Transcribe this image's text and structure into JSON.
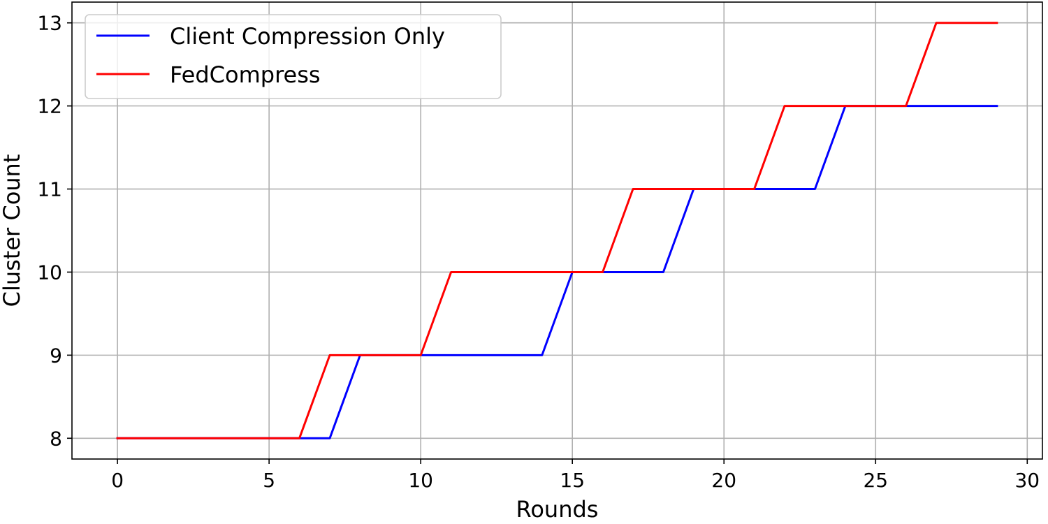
{
  "chart_data": {
    "type": "line",
    "title": "",
    "xlabel": "Rounds",
    "ylabel": "Cluster Count",
    "xlim": [
      -1.5,
      30.5
    ],
    "ylim": [
      7.75,
      13.25
    ],
    "xticks": [
      0,
      5,
      10,
      15,
      20,
      25,
      30
    ],
    "yticks": [
      8,
      9,
      10,
      11,
      12,
      13
    ],
    "xtick_labels": [
      "0",
      "5",
      "10",
      "15",
      "20",
      "25",
      "30"
    ],
    "ytick_labels": [
      "8",
      "9",
      "10",
      "11",
      "12",
      "13"
    ],
    "grid": true,
    "legend_position": "top-left",
    "x": [
      0,
      1,
      2,
      3,
      4,
      5,
      6,
      7,
      8,
      9,
      10,
      11,
      12,
      13,
      14,
      15,
      16,
      17,
      18,
      19,
      20,
      21,
      22,
      23,
      24,
      25,
      26,
      27,
      28,
      29
    ],
    "series": [
      {
        "name": "Client Compression Only",
        "color": "#0000ff",
        "values": [
          8,
          8,
          8,
          8,
          8,
          8,
          8,
          8,
          9,
          9,
          9,
          9,
          9,
          9,
          9,
          10,
          10,
          10,
          10,
          11,
          11,
          11,
          11,
          11,
          12,
          12,
          12,
          12,
          12,
          12
        ]
      },
      {
        "name": "FedCompress",
        "color": "#ff0000",
        "values": [
          8,
          8,
          8,
          8,
          8,
          8,
          8,
          9,
          9,
          9,
          9,
          10,
          10,
          10,
          10,
          10,
          10,
          11,
          11,
          11,
          11,
          11,
          12,
          12,
          12,
          12,
          12,
          13,
          13,
          13
        ]
      }
    ]
  }
}
